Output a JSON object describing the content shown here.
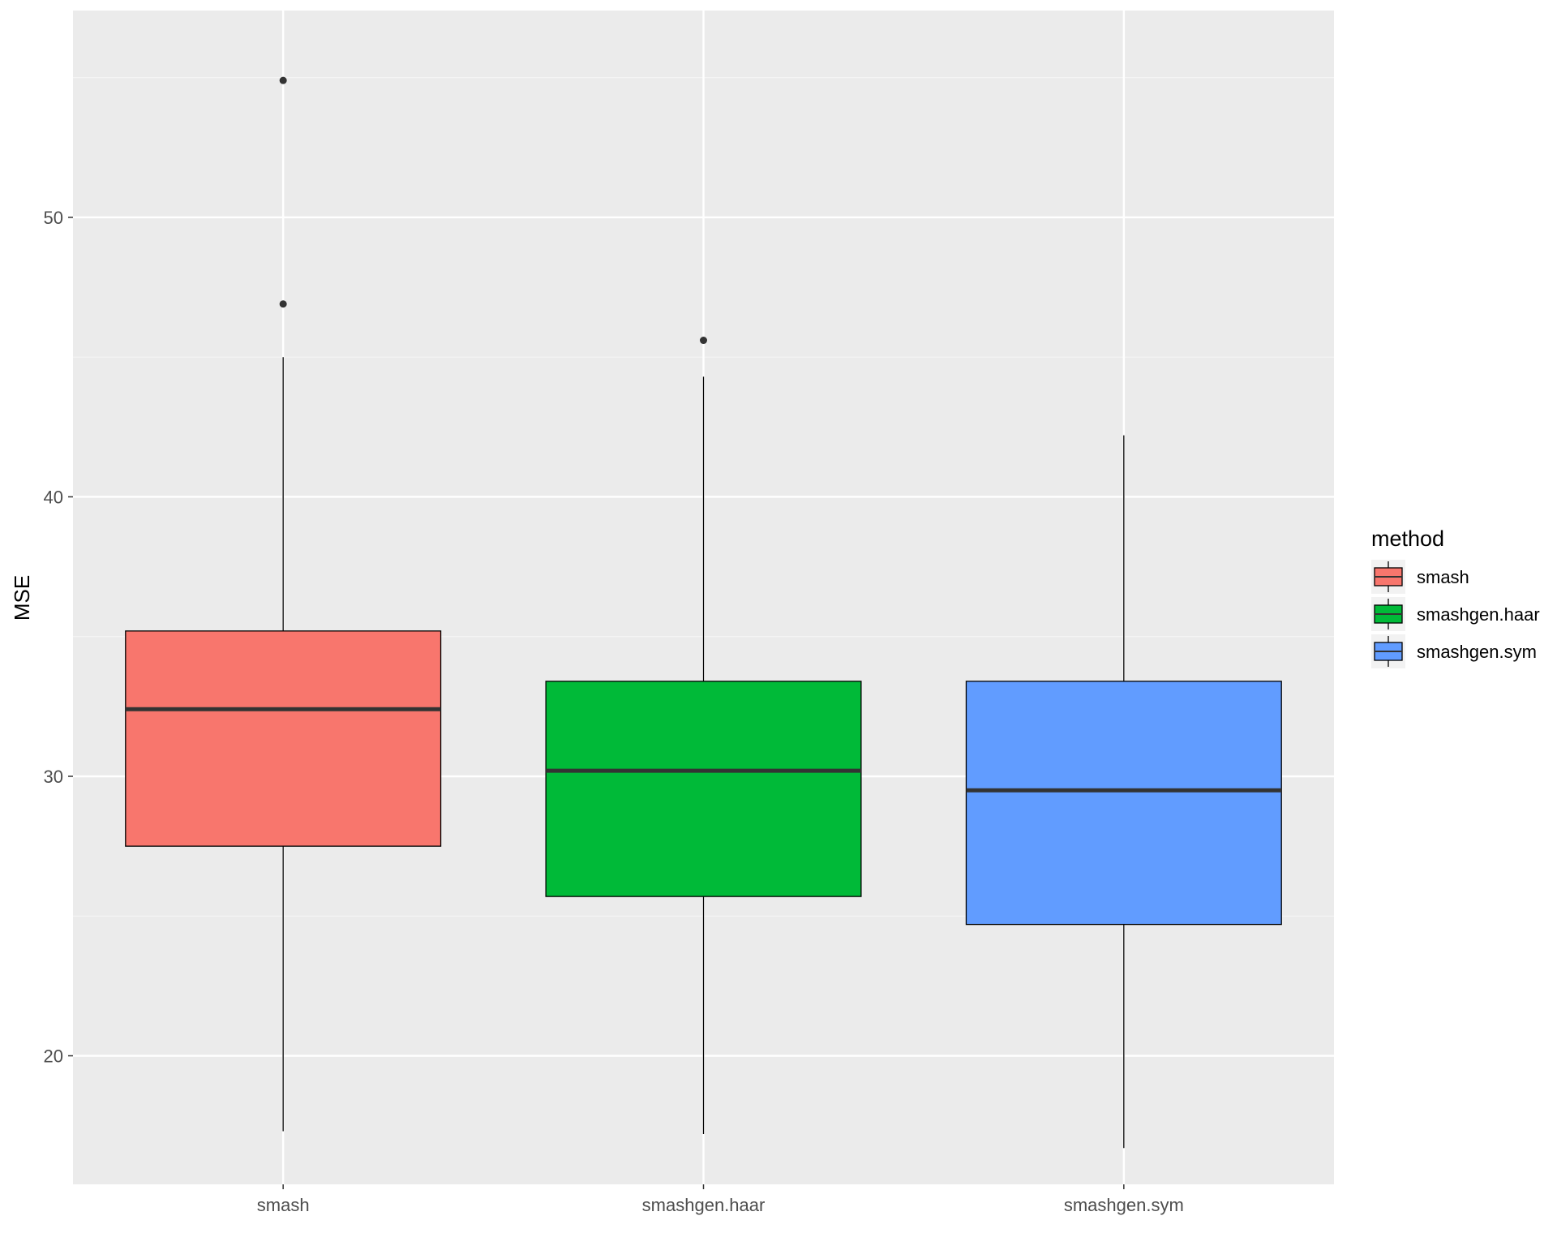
{
  "chart_data": {
    "type": "box",
    "xlabel": "",
    "ylabel": "MSE",
    "ylim": [
      15.4,
      57.4
    ],
    "y_ticks": [
      20,
      30,
      40,
      50
    ],
    "categories": [
      "smash",
      "smashgen.haar",
      "smashgen.sym"
    ],
    "series": [
      {
        "name": "smash",
        "color": "#F8766D",
        "whisker_low": 17.3,
        "q1": 27.5,
        "median": 32.4,
        "q3": 35.2,
        "whisker_high": 45.0,
        "outliers": [
          54.9,
          46.9
        ]
      },
      {
        "name": "smashgen.haar",
        "color": "#00BA38",
        "whisker_low": 17.2,
        "q1": 25.7,
        "median": 30.2,
        "q3": 33.4,
        "whisker_high": 44.3,
        "outliers": [
          45.6
        ]
      },
      {
        "name": "smashgen.sym",
        "color": "#619CFF",
        "whisker_low": 16.7,
        "q1": 24.7,
        "median": 29.5,
        "q3": 33.4,
        "whisker_high": 42.2,
        "outliers": []
      }
    ],
    "legend": {
      "title": "method",
      "position": "right",
      "entries": [
        "smash",
        "smashgen.haar",
        "smashgen.sym"
      ]
    },
    "grid": true
  }
}
